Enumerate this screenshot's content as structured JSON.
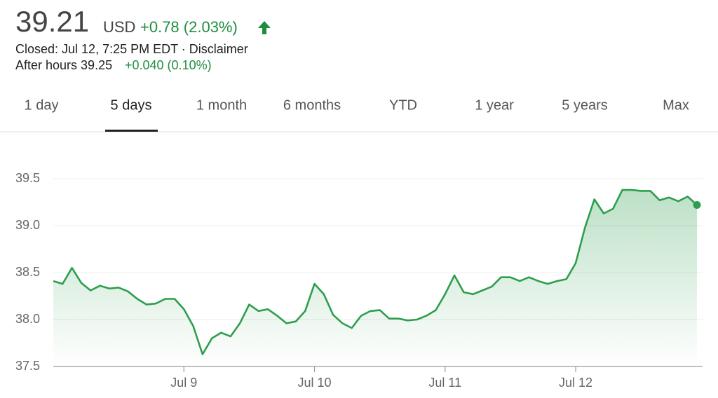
{
  "header": {
    "price": "39.21",
    "currency": "USD",
    "change": "+0.78 (2.03%)",
    "closed": "Closed: Jul 12, 7:25 PM EDT · Disclaimer",
    "after_hours": "After hours 39.25",
    "after_hours_change": "+0.040 (0.10%)"
  },
  "tabs": {
    "items": [
      "1 day",
      "5 days",
      "1 month",
      "6 months",
      "YTD",
      "1 year",
      "5 years",
      "Max"
    ],
    "selected": 1
  },
  "chart_data": {
    "type": "line",
    "color": "#2e9e4e",
    "grid": true,
    "categories": [
      null,
      null,
      null,
      null,
      null,
      null,
      null,
      null,
      null,
      null,
      null,
      null,
      null,
      null,
      "Jul 9",
      null,
      null,
      null,
      null,
      null,
      null,
      null,
      null,
      null,
      null,
      null,
      null,
      null,
      "Jul 10",
      null,
      null,
      null,
      null,
      null,
      null,
      null,
      null,
      null,
      null,
      null,
      null,
      null,
      "Jul 11",
      null,
      null,
      null,
      null,
      null,
      null,
      null,
      null,
      null,
      null,
      null,
      null,
      null,
      "Jul 12",
      null,
      null,
      null,
      null,
      null,
      null,
      null,
      null,
      null,
      null,
      null,
      null,
      null
    ],
    "values": [
      38.41,
      38.38,
      38.55,
      38.39,
      38.31,
      38.36,
      38.33,
      38.34,
      38.3,
      38.22,
      38.16,
      38.17,
      38.22,
      38.22,
      38.11,
      37.93,
      37.63,
      37.8,
      37.86,
      37.82,
      37.96,
      38.16,
      38.09,
      38.11,
      38.04,
      37.96,
      37.98,
      38.09,
      38.38,
      38.27,
      38.05,
      37.96,
      37.91,
      38.04,
      38.09,
      38.1,
      38.01,
      38.01,
      37.99,
      38.0,
      38.04,
      38.1,
      38.27,
      38.47,
      38.29,
      38.27,
      38.31,
      38.35,
      38.45,
      38.45,
      38.41,
      38.45,
      38.41,
      38.38,
      38.41,
      38.43,
      38.6,
      38.98,
      39.28,
      39.13,
      39.18,
      39.38,
      39.38,
      39.37,
      39.37,
      39.27,
      39.3,
      39.26,
      39.31,
      39.22
    ],
    "ylim": [
      37.5,
      39.5
    ],
    "yticks": [
      37.5,
      {
        "value": 38,
        "label": "38.0"
      },
      38.5,
      {
        "value": 39,
        "label": "39.0"
      },
      39.5
    ]
  }
}
